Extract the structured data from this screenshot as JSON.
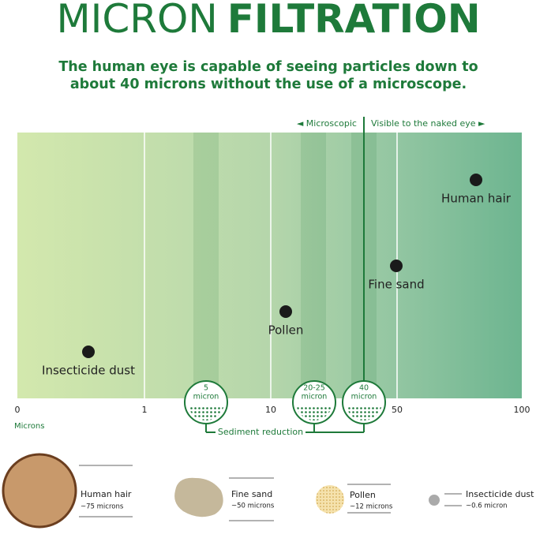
{
  "title": {
    "light": "MICRON",
    "bold": "FILTRATION"
  },
  "subtitle": [
    "The human eye is capable of seeing particles down to",
    "about 40 microns without the use of a microscope."
  ],
  "zones": {
    "left": "◄  Microscopic",
    "right": "Visible to the naked eye  ►"
  },
  "particles": [
    "Human hair",
    "Fine sand",
    "Pollen",
    "Insecticide dust"
  ],
  "axis": {
    "ticks": [
      "0",
      "1",
      "10",
      "50",
      "100"
    ],
    "unit": "Microns"
  },
  "filters": [
    {
      "size": "5",
      "unit": "micron"
    },
    {
      "size": "20-25",
      "unit": "micron"
    },
    {
      "size": "40",
      "unit": "micron"
    }
  ],
  "sediment": "Sediment reduction",
  "legend": [
    {
      "name": "Human hair",
      "size": "~75 microns"
    },
    {
      "name": "Fine sand",
      "size": "~50 microns"
    },
    {
      "name": "Pollen",
      "size": "~12 microns"
    },
    {
      "name": "Insecticide dust",
      "size": "~0.6 micron"
    }
  ]
}
